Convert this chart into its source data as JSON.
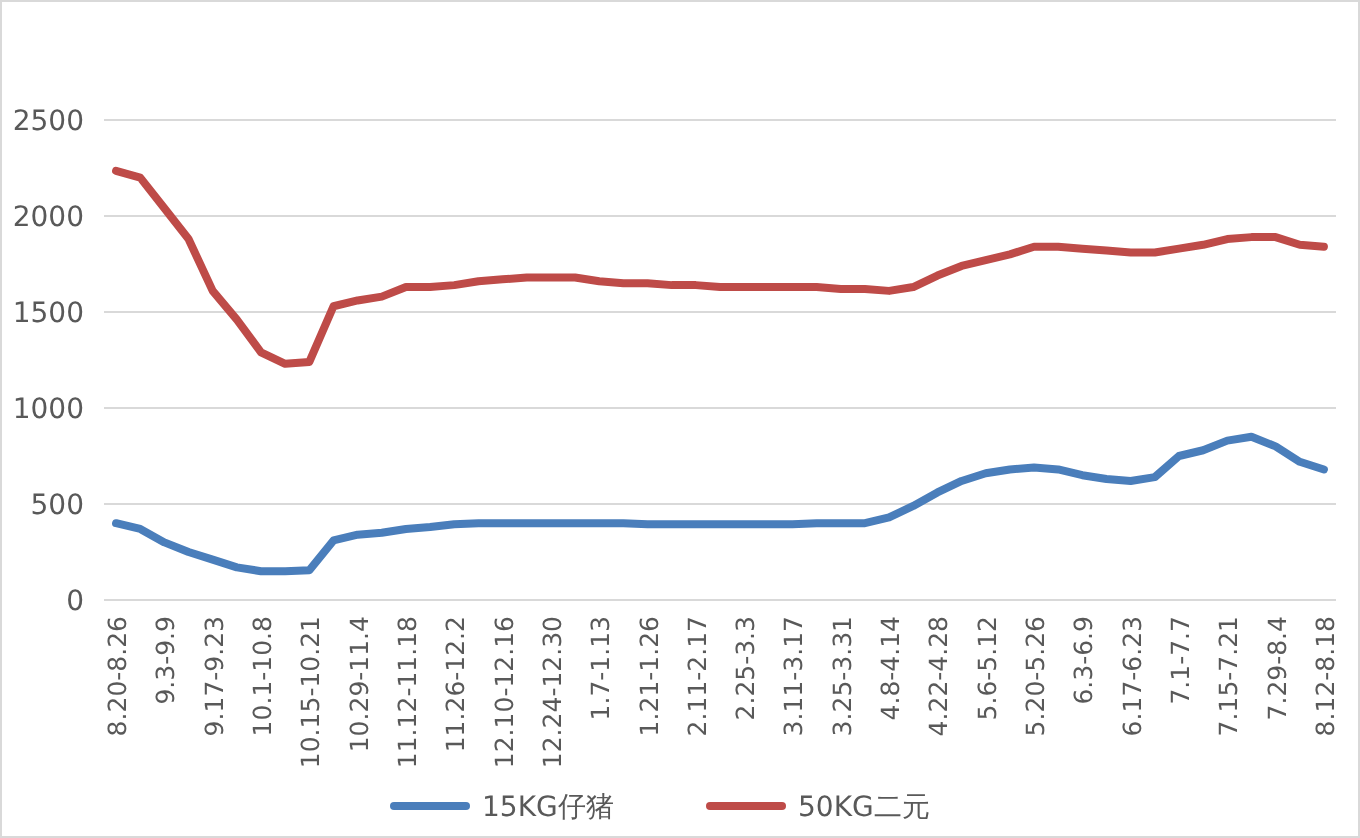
{
  "chart_data": {
    "type": "line",
    "categories": [
      "8.20-8.26",
      null,
      "9.3-9.9",
      null,
      "9.17-9.23",
      null,
      "10.1-10.8",
      null,
      "10.15-10.21",
      null,
      "10.29-11.4",
      null,
      "11.12-11.18",
      null,
      "11.26-12.2",
      null,
      "12.10-12.16",
      null,
      "12.24-12.30",
      null,
      "1.7-1.13",
      null,
      "1.21-1.26",
      null,
      "2.11-2.17",
      null,
      "2.25-3.3",
      null,
      "3.11-3.17",
      null,
      "3.25-3.31",
      null,
      "4.8-4.14",
      null,
      "4.22-4.28",
      null,
      "5.6-5.12",
      null,
      "5.20-5.26",
      null,
      "6.3-6.9",
      null,
      "6.17-6.23",
      null,
      "7.1-7.7",
      null,
      "7.15-7.21",
      null,
      "7.29-8.4",
      null,
      "8.12-8.18"
    ],
    "series": [
      {
        "name": "15KG仔猪",
        "color": "#4a7ebb",
        "values": [
          400,
          370,
          300,
          250,
          210,
          170,
          150,
          150,
          155,
          310,
          340,
          350,
          370,
          380,
          395,
          400,
          400,
          400,
          400,
          400,
          400,
          400,
          395,
          395,
          395,
          395,
          395,
          395,
          395,
          400,
          400,
          400,
          430,
          490,
          560,
          620,
          660,
          680,
          690,
          680,
          650,
          630,
          620,
          640,
          750,
          780,
          830,
          850,
          800,
          720,
          680
        ]
      },
      {
        "name": "50KG二元",
        "color": "#be4b48",
        "values": [
          2235,
          2200,
          2040,
          1880,
          1610,
          1460,
          1290,
          1230,
          1240,
          1530,
          1560,
          1580,
          1630,
          1630,
          1640,
          1660,
          1670,
          1680,
          1680,
          1680,
          1660,
          1650,
          1650,
          1640,
          1640,
          1630,
          1630,
          1630,
          1630,
          1630,
          1620,
          1620,
          1610,
          1630,
          1690,
          1740,
          1770,
          1800,
          1840,
          1840,
          1830,
          1820,
          1810,
          1810,
          1830,
          1850,
          1880,
          1890,
          1890,
          1850,
          1840
        ]
      }
    ],
    "ylim": [
      0,
      2500
    ],
    "yticks": [
      0,
      500,
      1000,
      1500,
      2000,
      2500
    ],
    "grid": "y",
    "legend": "bottom",
    "marker": "none",
    "line_style": "solid"
  }
}
